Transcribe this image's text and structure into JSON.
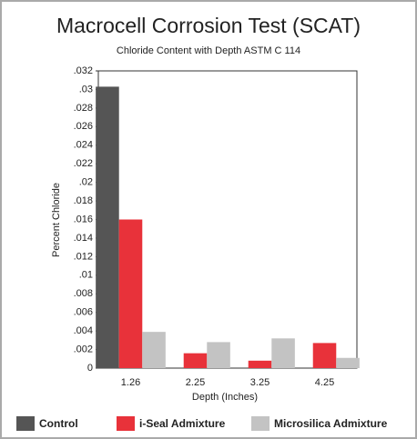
{
  "chart_data": {
    "type": "bar",
    "title": "Macrocell Corrosion Test (SCAT)",
    "subtitle": "Chloride Content with Depth ASTM C 114",
    "y_label": "Percent Chloride",
    "x_label": "Depth (Inches)",
    "categories": [
      "1.26",
      "2.25",
      "3.25",
      "4.25"
    ],
    "series": [
      {
        "name": "Control",
        "color": "#555555",
        "values": [
          0.0303,
          0,
          0,
          0
        ]
      },
      {
        "name": "i-Seal Admixture",
        "color": "#e8323a",
        "values": [
          0.016,
          0.0016,
          0.0008,
          0.0027
        ]
      },
      {
        "name": "Microsilica Admixture",
        "color": "#c3c3c3",
        "values": [
          0.0039,
          0.0028,
          0.0032,
          0.0011
        ]
      }
    ],
    "ylim": [
      0,
      0.032
    ],
    "yticks": [
      0,
      {
        "value": 0.002,
        "label": ".002"
      },
      {
        "value": 0.004,
        "label": ".004"
      },
      {
        "value": 0.006,
        "label": ".006"
      },
      {
        "value": 0.008,
        "label": ".008"
      },
      {
        "value": 0.01,
        "label": ".01"
      },
      {
        "value": 0.012,
        "label": ".012"
      },
      {
        "value": 0.014,
        "label": ".014"
      },
      {
        "value": 0.016,
        "label": ".016"
      },
      {
        "value": 0.018,
        "label": ".018"
      },
      {
        "value": 0.02,
        "label": ".02"
      },
      {
        "value": 0.022,
        "label": ".022"
      },
      {
        "value": 0.024,
        "label": ".024"
      },
      {
        "value": 0.026,
        "label": ".026"
      },
      {
        "value": 0.028,
        "label": ".028"
      },
      {
        "value": 0.03,
        "label": ".03"
      },
      {
        "value": 0.032,
        "label": ".032"
      }
    ],
    "legend": "bottom"
  }
}
